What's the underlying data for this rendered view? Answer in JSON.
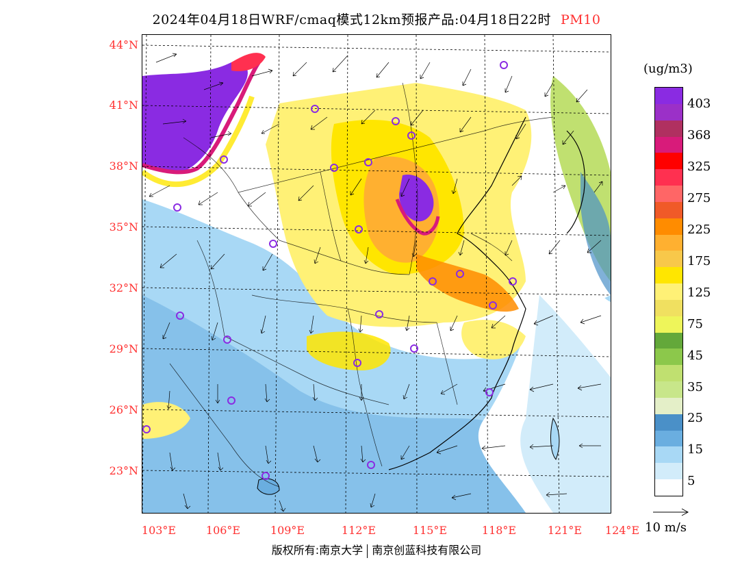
{
  "title": {
    "main": "2024年04月18日WRF/cmaq模式12km预报产品:04月18日22时",
    "pollutant": "PM10"
  },
  "axes": {
    "lat_labels": [
      "44°N",
      "41°N",
      "38°N",
      "35°N",
      "32°N",
      "29°N",
      "26°N",
      "23°N"
    ],
    "lon_labels": [
      "103°E",
      "106°E",
      "109°E",
      "112°E",
      "115°E",
      "118°E",
      "121°E",
      "124°E"
    ]
  },
  "legend": {
    "unit": "(ug/m3)",
    "labels": [
      "403",
      "368",
      "325",
      "275",
      "225",
      "175",
      "125",
      "75",
      "45",
      "35",
      "25",
      "15",
      "5"
    ],
    "colors": [
      "#8a2be2",
      "#9b30c8",
      "#b03060",
      "#d81b7a",
      "#ff0000",
      "#ff3050",
      "#ff6666",
      "#f05a28",
      "#ff8c00",
      "#ffb030",
      "#f8c84a",
      "#ffe600",
      "#fff176",
      "#f0e060",
      "#eef55a",
      "#63a83a",
      "#8cc84b",
      "#c0e070",
      "#c8e68a",
      "#e4efc8",
      "#4a90c8",
      "#6aaee0",
      "#a8d8f5",
      "#d2ecfa",
      "#ffffff"
    ]
  },
  "wind_scale": "10 m/s",
  "copyright": {
    "left": "版权所有:南京大学",
    "right": "南京创蓝科技有限公司"
  },
  "accent_colors": {
    "axis_label": "#ff3030",
    "station_marker": "#8a2be2"
  }
}
